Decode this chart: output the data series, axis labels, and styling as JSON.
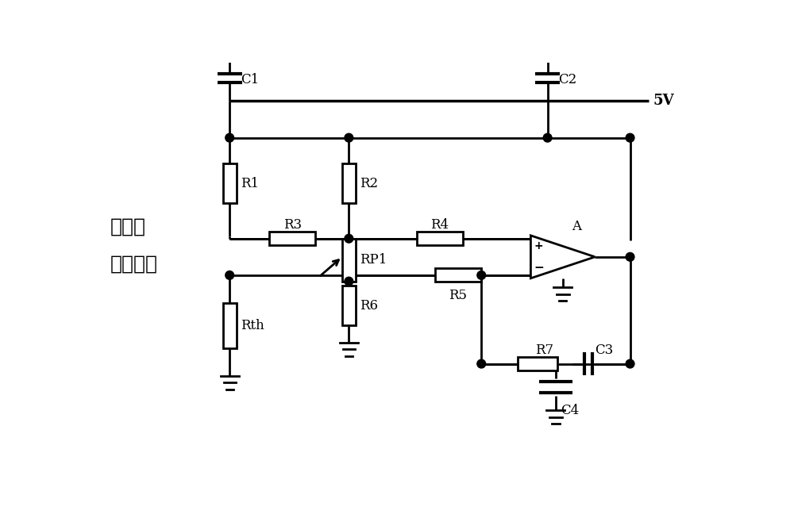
{
  "bg_color": "#ffffff",
  "line_color": "#000000",
  "lw": 2.0,
  "fig_width": 10.0,
  "fig_height": 6.58,
  "dpi": 100,
  "chinese_label_line1": "激光器",
  "chinese_label_line2": "偏置电流",
  "label_5V": "5V",
  "label_A": "A",
  "label_C1": "C1",
  "label_C2": "C2",
  "label_C3": "C3",
  "label_C4": "C4",
  "label_R1": "R1",
  "label_R2": "R2",
  "label_R3": "R3",
  "label_R4": "R4",
  "label_R5": "R5",
  "label_R6": "R6",
  "label_R7": "R7",
  "label_Rth": "Rth",
  "label_RP1": "RP1"
}
